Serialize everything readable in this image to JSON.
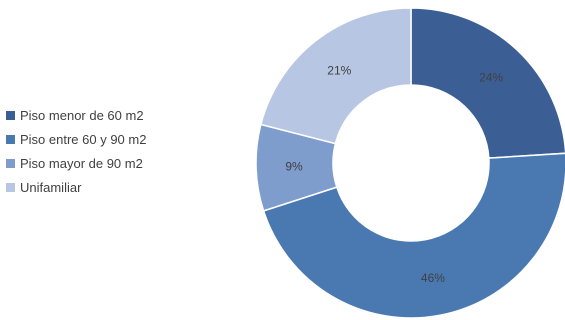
{
  "chart_data": {
    "type": "pie",
    "variant": "donut",
    "categories": [
      "Piso menor de 60 m2",
      "Piso entre 60 y 90 m2",
      "Piso mayor de 90 m2",
      "Unifamiliar"
    ],
    "values": [
      24,
      46,
      9,
      21
    ],
    "labels": [
      "24%",
      "46%",
      "9%",
      "21%"
    ],
    "colors": [
      "#3b5f94",
      "#4a79b2",
      "#7e9dcc",
      "#b7c6e2"
    ],
    "legend_position": "left"
  }
}
